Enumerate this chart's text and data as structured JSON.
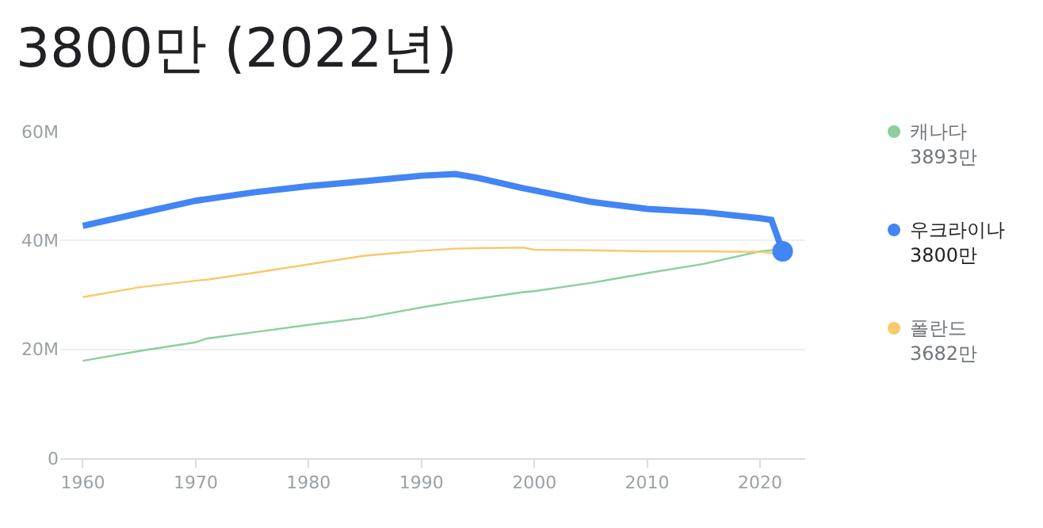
{
  "chart_data": {
    "type": "line",
    "title": "3800만 (2022년)",
    "x": [
      1960,
      1965,
      1970,
      1971,
      1975,
      1980,
      1985,
      1990,
      1993,
      1995,
      1999,
      2000,
      2005,
      2010,
      2015,
      2020,
      2021,
      2022
    ],
    "series": [
      {
        "name": "캐나다",
        "color": "#8ccf9c",
        "values": [
          17.9,
          19.7,
          21.3,
          22.0,
          23.1,
          24.5,
          25.8,
          27.7,
          28.7,
          29.3,
          30.5,
          30.7,
          32.2,
          34.0,
          35.7,
          38.0,
          38.2,
          38.9
        ]
      },
      {
        "name": "우크라이나",
        "color": "#4285f4",
        "values": [
          42.7,
          45.0,
          47.3,
          47.6,
          48.8,
          50.0,
          50.9,
          51.9,
          52.2,
          51.5,
          49.6,
          49.2,
          47.1,
          45.8,
          45.2,
          44.1,
          43.8,
          38.0
        ]
      },
      {
        "name": "폴란드",
        "color": "#f9c96b",
        "values": [
          29.6,
          31.4,
          32.6,
          32.8,
          34.0,
          35.6,
          37.2,
          38.1,
          38.5,
          38.6,
          38.7,
          38.3,
          38.2,
          38.0,
          38.0,
          37.9,
          37.7,
          36.8
        ]
      },
      {
        "type": "scatter",
        "color": "#4285f4",
        "marker": "circle",
        "x": [
          2022
        ],
        "values": [
          38.0
        ]
      }
    ],
    "annotations": [
      "3893만",
      "3800만",
      "3682만"
    ],
    "xlim": [
      1958,
      2024
    ],
    "xticks": [
      1960,
      1970,
      1980,
      1990,
      2000,
      2010,
      2020
    ],
    "ylim": [
      0,
      60
    ],
    "yticks": [
      {
        "value": 0,
        "label": "0"
      },
      {
        "value": 20,
        "label": "20M"
      },
      {
        "value": 40,
        "label": "40M"
      },
      {
        "value": 60,
        "label": "60M"
      }
    ],
    "grid": "y",
    "legend": "right"
  }
}
